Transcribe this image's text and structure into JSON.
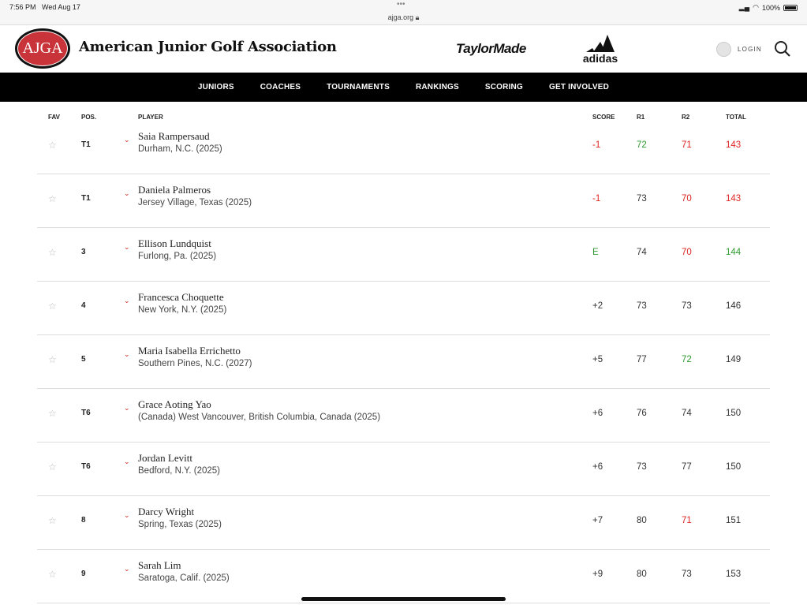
{
  "status_bar": {
    "time": "7:56 PM",
    "date": "Wed Aug 17",
    "url": "ajga.org",
    "battery": "100%"
  },
  "header": {
    "logo_text": "AJGA",
    "title": "American Junior Golf Association",
    "sponsor1": "TaylorMade",
    "sponsor2": "adidas",
    "login": "LOGIN"
  },
  "nav": [
    "JUNIORS",
    "COACHES",
    "TOURNAMENTS",
    "RANKINGS",
    "SCORING",
    "GET INVOLVED"
  ],
  "table": {
    "headers": {
      "fav": "FAV",
      "pos": "POS.",
      "player": "PLAYER",
      "score": "SCORE",
      "r1": "R1",
      "r2": "R2",
      "total": "TOTAL"
    },
    "colors": {
      "under": "#e02424",
      "even": "#2f9a2f"
    },
    "rows": [
      {
        "pos": "T1",
        "name": "Saia Rampersaud",
        "loc": "Durham, N.C. (2025)",
        "score": "-1",
        "r1": "72",
        "r2": "71",
        "total": "143",
        "sc": "red",
        "r1c": "green",
        "r2c": "red",
        "tc": "red"
      },
      {
        "pos": "T1",
        "name": "Daniela Palmeros",
        "loc": "Jersey Village, Texas (2025)",
        "score": "-1",
        "r1": "73",
        "r2": "70",
        "total": "143",
        "sc": "red",
        "r1c": "",
        "r2c": "red",
        "tc": "red"
      },
      {
        "pos": "3",
        "name": "Ellison Lundquist",
        "loc": "Furlong, Pa. (2025)",
        "score": "E",
        "r1": "74",
        "r2": "70",
        "total": "144",
        "sc": "green",
        "r1c": "",
        "r2c": "red",
        "tc": "green"
      },
      {
        "pos": "4",
        "name": "Francesca Choquette",
        "loc": "New York, N.Y. (2025)",
        "score": "+2",
        "r1": "73",
        "r2": "73",
        "total": "146",
        "sc": "",
        "r1c": "",
        "r2c": "",
        "tc": ""
      },
      {
        "pos": "5",
        "name": "Maria Isabella Errichetto",
        "loc": "Southern Pines, N.C. (2027)",
        "score": "+5",
        "r1": "77",
        "r2": "72",
        "total": "149",
        "sc": "",
        "r1c": "",
        "r2c": "green",
        "tc": ""
      },
      {
        "pos": "T6",
        "name": "Grace Aoting Yao",
        "loc": "(Canada) West Vancouver, British Columbia, Canada (2025)",
        "score": "+6",
        "r1": "76",
        "r2": "74",
        "total": "150",
        "sc": "",
        "r1c": "",
        "r2c": "",
        "tc": ""
      },
      {
        "pos": "T6",
        "name": "Jordan Levitt",
        "loc": "Bedford, N.Y. (2025)",
        "score": "+6",
        "r1": "73",
        "r2": "77",
        "total": "150",
        "sc": "",
        "r1c": "",
        "r2c": "",
        "tc": ""
      },
      {
        "pos": "8",
        "name": "Darcy Wright",
        "loc": "Spring, Texas (2025)",
        "score": "+7",
        "r1": "80",
        "r2": "71",
        "total": "151",
        "sc": "",
        "r1c": "",
        "r2c": "red",
        "tc": ""
      },
      {
        "pos": "9",
        "name": "Sarah Lim",
        "loc": "Saratoga, Calif. (2025)",
        "score": "+9",
        "r1": "80",
        "r2": "73",
        "total": "153",
        "sc": "",
        "r1c": "",
        "r2c": "",
        "tc": ""
      }
    ]
  }
}
